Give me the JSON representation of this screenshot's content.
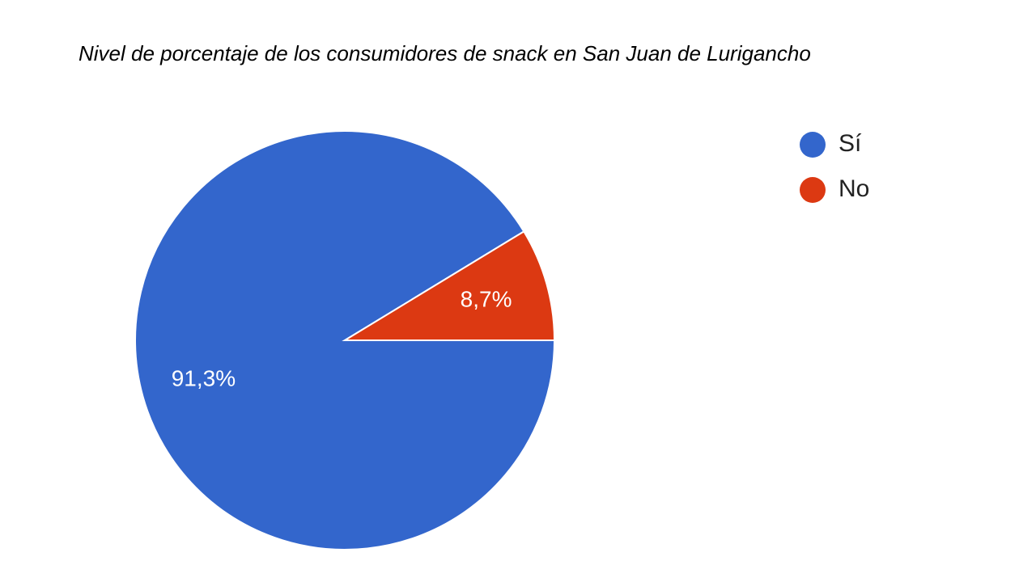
{
  "chart_data": {
    "type": "pie",
    "title": "Nivel de porcentaje de los consumidores de snack en San Juan de Lurigancho",
    "categories": [
      "Sí",
      "No"
    ],
    "values": [
      91.3,
      8.7
    ],
    "value_labels": [
      "91,3%",
      "8,7%"
    ],
    "colors": [
      "#3366cc",
      "#dc3912"
    ],
    "legend": "right"
  }
}
